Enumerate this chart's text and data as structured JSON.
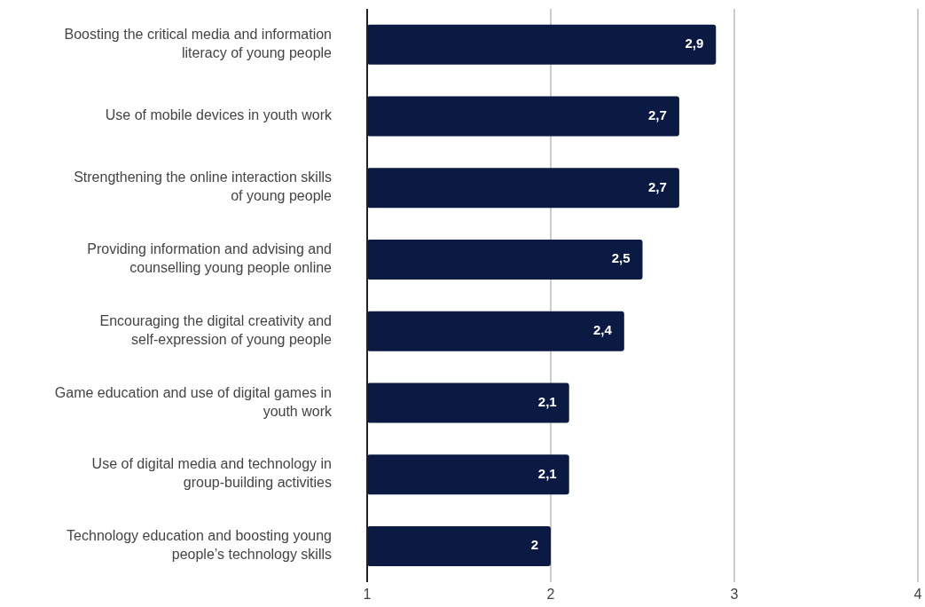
{
  "chart_data": {
    "type": "bar",
    "orientation": "horizontal",
    "categories": [
      "Boosting the critical media and information literacy of young people",
      "Use of mobile devices in youth work",
      "Strengthening the online interaction skills of young people",
      "Providing information and advising and counselling young people online",
      "Encouraging the digital creativity and self-expression of young people",
      "Game education and use of digital games in youth work",
      "Use of digital media and technology in group-building activities",
      "Technology education and boosting young people’s technology skills"
    ],
    "values": [
      2.9,
      2.7,
      2.7,
      2.5,
      2.4,
      2.1,
      2.1,
      2
    ],
    "value_labels": [
      "2,9",
      "2,7",
      "2,7",
      "2,5",
      "2,4",
      "2,1",
      "2,1",
      "2"
    ],
    "color": "#0b1a42",
    "xlim": [
      1,
      4
    ],
    "xticks": [
      1,
      2,
      3,
      4
    ],
    "grid": "x",
    "legend": false
  }
}
